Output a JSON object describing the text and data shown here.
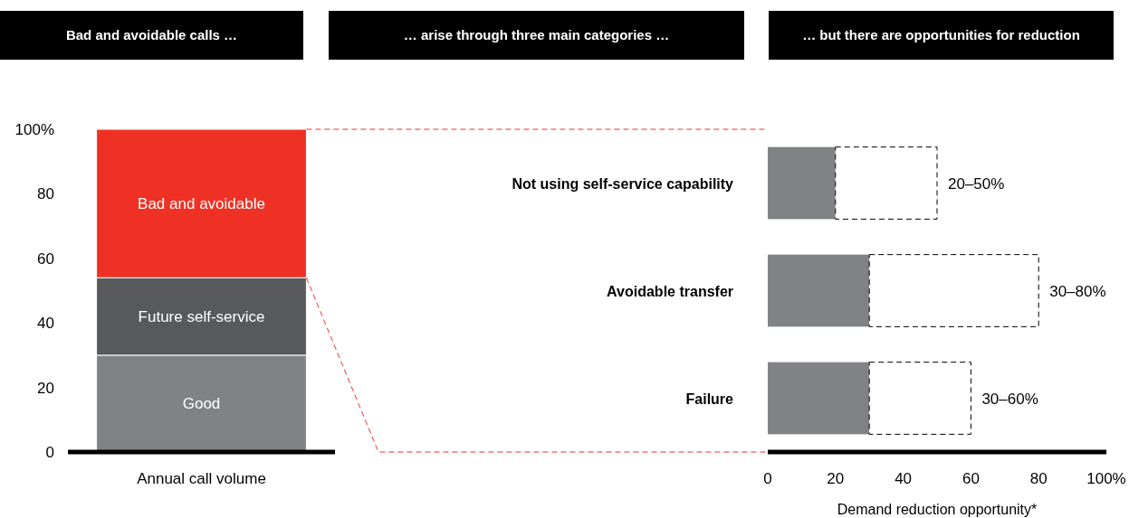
{
  "chart_data": [
    {
      "type": "bar",
      "title": "Bad and avoidable calls …",
      "categories": [
        "Annual call volume"
      ],
      "stacked": true,
      "ylim": [
        0,
        100
      ],
      "yticks": [
        0,
        20,
        40,
        60,
        80,
        {
          "value": 100,
          "label": "100%"
        }
      ],
      "series": [
        {
          "name": "Good",
          "color": "#808285",
          "values": [
            30
          ]
        },
        {
          "name": "Future self-service",
          "color": "#58595b",
          "values": [
            24
          ]
        },
        {
          "name": "Bad and avoidable",
          "color": "#ee3124",
          "values": [
            46
          ]
        }
      ]
    },
    {
      "type": "bar",
      "orientation": "horizontal",
      "stacked": true,
      "title": "… arise through three main categories …",
      "subtitle": "… but there are opportunities for reduction",
      "xlabel": "Demand reduction opportunity*",
      "categories": [
        "Not using self-service capability",
        "Avoidable transfer",
        "Failure"
      ],
      "xlim": [
        0,
        100
      ],
      "xticks": [
        0,
        20,
        40,
        60,
        80,
        {
          "value": 100,
          "label": "100%"
        }
      ],
      "series": [
        {
          "color": "#808285",
          "values": [
            20,
            30,
            30
          ]
        },
        {
          "color": "#ffffff",
          "line_style": "dashed",
          "values": [
            30,
            50,
            30
          ]
        }
      ],
      "annotations": [
        {
          "text": "20–50%",
          "x": 50,
          "y": "Not using self-service capability"
        },
        {
          "text": "30–80%",
          "x": 80,
          "y": "Avoidable transfer"
        },
        {
          "text": "30–60%",
          "x": 60,
          "y": "Failure"
        }
      ]
    }
  ]
}
